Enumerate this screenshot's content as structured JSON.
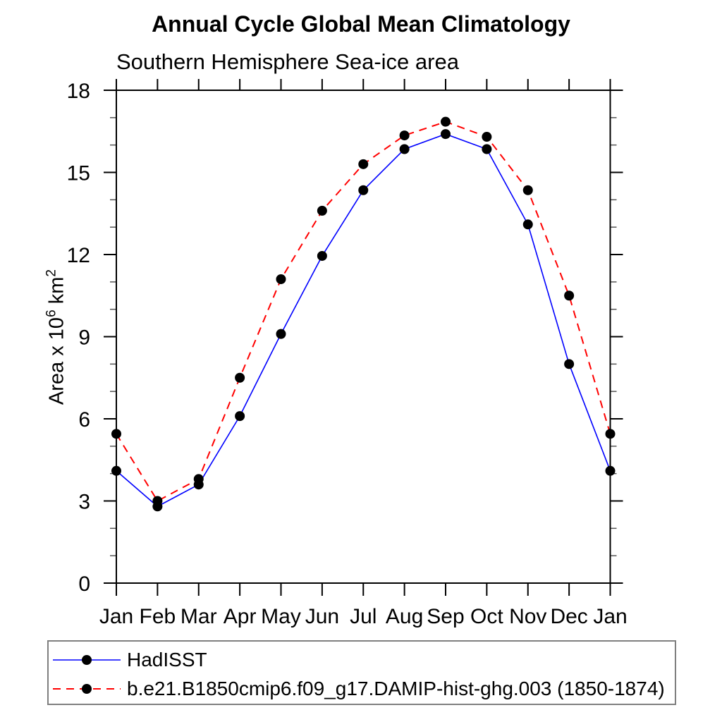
{
  "colors": {
    "background": "#ffffff",
    "axis": "#000000",
    "minor_tick": "#555555",
    "marker": "#000000",
    "legend_border": "#7f7f7f",
    "text": "#000000"
  },
  "chart_data": {
    "type": "line",
    "title": "Annual Cycle Global Mean Climatology",
    "subtitle": "Southern Hemisphere Sea-ice area",
    "xlabel": "",
    "ylabel": {
      "base": "Area x 10",
      "exp": "6",
      "unit": " km",
      "unit_exp": "2"
    },
    "categories": [
      "Jan",
      "Feb",
      "Mar",
      "Apr",
      "May",
      "Jun",
      "Jul",
      "Aug",
      "Sep",
      "Oct",
      "Nov",
      "Dec",
      "Jan"
    ],
    "ylim": [
      0,
      18
    ],
    "ytick_major_step": 3,
    "ytick_minor_step": 1,
    "ytick_major_labels": [
      "0",
      "3",
      "6",
      "9",
      "12",
      "15",
      "18"
    ],
    "grid": false,
    "legend_position": "bottom",
    "series": [
      {
        "name": "HadISST",
        "color": "#0000ff",
        "line_style": "solid",
        "marker": "circle",
        "marker_color": "#000000",
        "values": [
          4.1,
          2.8,
          3.6,
          6.1,
          9.1,
          11.95,
          14.35,
          15.85,
          16.4,
          15.85,
          13.1,
          8.0,
          4.1
        ]
      },
      {
        "name": "b.e21.B1850cmip6.f09_g17.DAMIP-hist-ghg.003 (1850-1874)",
        "color": "#ff0000",
        "line_style": "dashed",
        "marker": "circle",
        "marker_color": "#000000",
        "values": [
          5.45,
          3.0,
          3.8,
          7.5,
          11.1,
          13.6,
          15.3,
          16.35,
          16.85,
          16.3,
          14.35,
          10.5,
          5.45
        ]
      }
    ]
  }
}
